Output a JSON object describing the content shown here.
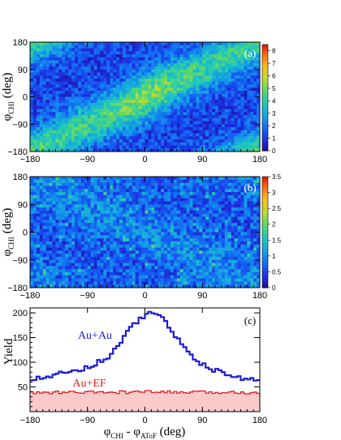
{
  "chart_data": [
    {
      "type": "heatmap",
      "panel_label": "(a)",
      "xlim": [
        -180,
        180
      ],
      "ylim": [
        -180,
        180
      ],
      "xticks": [
        "−180",
        "−90",
        "0",
        "90",
        "180"
      ],
      "yticks": [
        "180",
        "90",
        "0",
        "−90",
        "−180"
      ],
      "ylabel": {
        "main": "φ",
        "sub": "CHI",
        "unit": "(deg)"
      },
      "colorbar": {
        "min": 0,
        "max": 8.5,
        "ticks": [
          "8",
          "7",
          "6",
          "5",
          "4",
          "3",
          "2",
          "1",
          "0"
        ]
      },
      "pattern": "diagonal band of high density around φ_CHI ≈ φ_AToF (wrapping at ±180), peak near (0, ±180)"
    },
    {
      "type": "heatmap",
      "panel_label": "(b)",
      "xlim": [
        -180,
        180
      ],
      "ylim": [
        -180,
        180
      ],
      "xticks": [
        "−180",
        "−90",
        "0",
        "90",
        "180"
      ],
      "yticks": [
        "180",
        "90",
        "0",
        "−90",
        "−180"
      ],
      "ylabel": {
        "main": "φ",
        "sub": "CHI",
        "unit": "(deg)"
      },
      "colorbar": {
        "min": 0,
        "max": 3.5,
        "ticks": [
          "3.5",
          "3",
          "2.5",
          "2",
          "1.5",
          "1",
          "0.5",
          "0"
        ]
      },
      "pattern": "nearly uniform noise with weak anti-correlated structure"
    },
    {
      "type": "line",
      "panel_label": "(c)",
      "xlim": [
        -180,
        180
      ],
      "ylim": [
        0,
        210
      ],
      "xticks": [
        "−180",
        "−90",
        "0",
        "90",
        "180"
      ],
      "yticks": [
        "200",
        "150",
        "100",
        "50"
      ],
      "xlabel": {
        "main1": "φ",
        "sub1": "CHI",
        "mid": " - φ",
        "sub2": "AToF",
        "unit": " (deg)"
      },
      "ylabel": "Yield",
      "series": [
        {
          "name": "Au+Au",
          "color": "#1c1cd8",
          "x": [
            -180,
            -150,
            -120,
            -90,
            -60,
            -45,
            -30,
            -15,
            0,
            10,
            20,
            30,
            45,
            60,
            90,
            120,
            150,
            180
          ],
          "values": [
            67,
            72,
            80,
            90,
            108,
            128,
            158,
            180,
            193,
            203,
            198,
            185,
            160,
            130,
            95,
            78,
            68,
            63
          ]
        },
        {
          "name": "Au+EF",
          "color": "#e02020",
          "fill": "#f8caca",
          "x": [
            -180,
            -120,
            -60,
            0,
            60,
            120,
            180
          ],
          "values": [
            38,
            39,
            39,
            40,
            39,
            39,
            39
          ]
        }
      ]
    }
  ]
}
